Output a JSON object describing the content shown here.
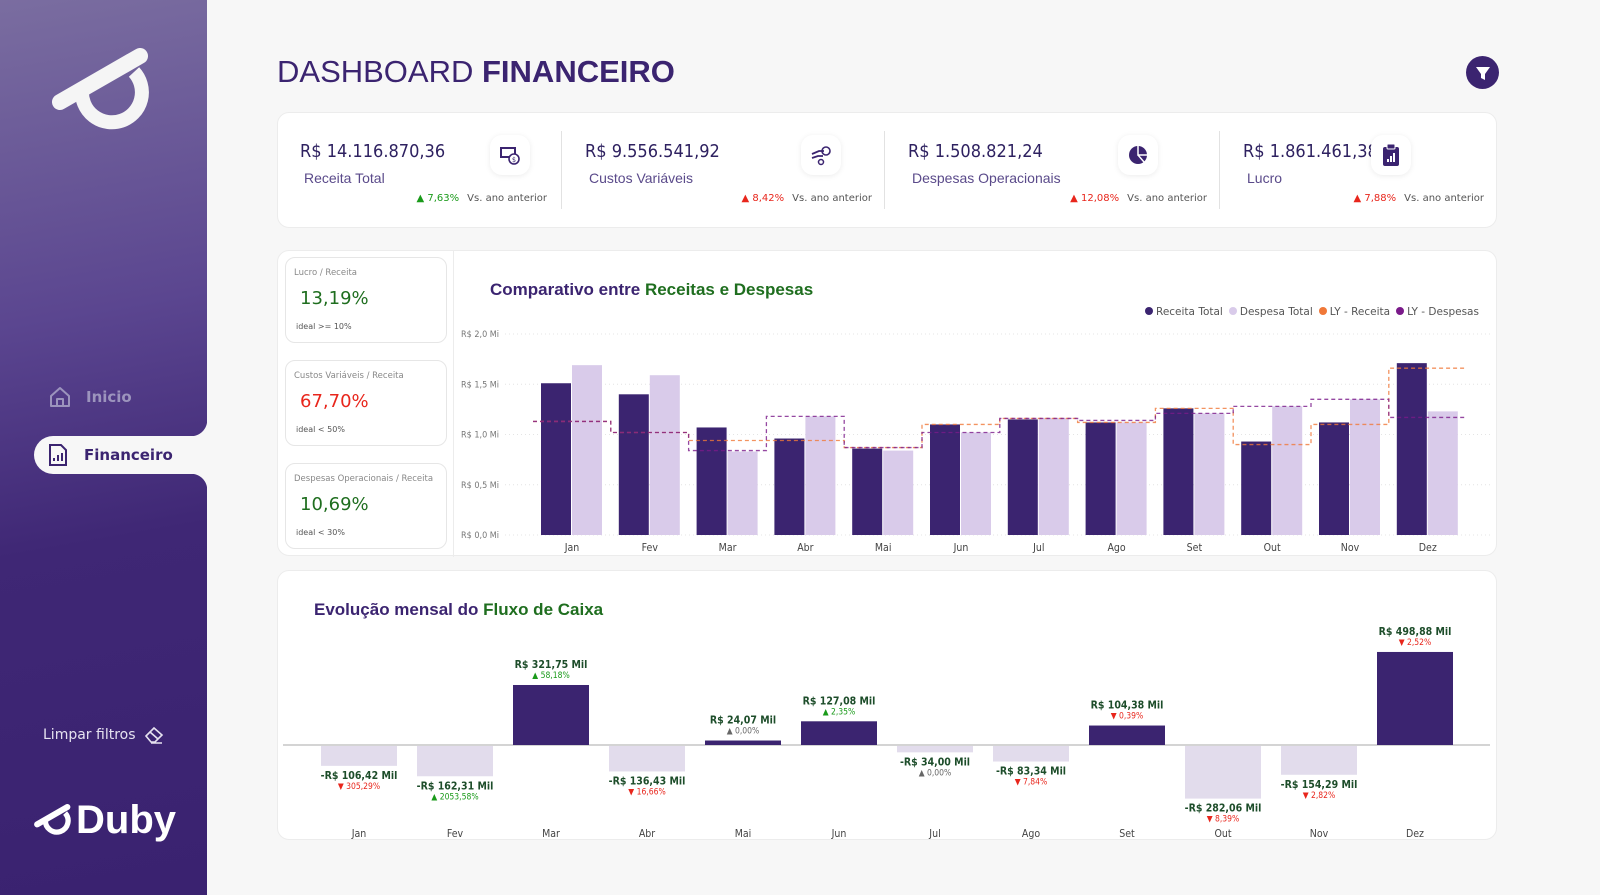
{
  "sidebar": {
    "nav": [
      {
        "label": "Inicio",
        "icon": "home-icon"
      },
      {
        "label": "Financeiro",
        "icon": "report-icon",
        "active": true
      }
    ],
    "clear_filters": "Limpar filtros",
    "brand": "Duby"
  },
  "header": {
    "title_light": "DASHBOARD",
    "title_bold": "FINANCEIRO"
  },
  "kpis": [
    {
      "value": "R$ 14.116.870,36",
      "label": "Receita Total",
      "delta": "7,63%",
      "delta_dir": "up",
      "delta_color": "#1a9a1a",
      "compare": "Vs. ano anterior",
      "icon": "money-icon"
    },
    {
      "value": "R$ 9.556.541,92",
      "label": "Custos Variáveis",
      "delta": "8,42%",
      "delta_dir": "up",
      "delta_color": "#e8261c",
      "compare": "Vs. ano anterior",
      "icon": "hand-coin-icon"
    },
    {
      "value": "R$ 1.508.821,24",
      "label": "Despesas Operacionais",
      "delta": "12,08%",
      "delta_dir": "up",
      "delta_color": "#e8261c",
      "compare": "Vs. ano anterior",
      "icon": "pie-chart-icon"
    },
    {
      "value": "R$ 1.861.461,38",
      "label": "Lucro",
      "delta": "7,88%",
      "delta_dir": "up",
      "delta_color": "#e8261c",
      "compare": "Vs. ano anterior",
      "icon": "clipboard-chart-icon"
    }
  ],
  "ratios": [
    {
      "title": "Lucro / Receita",
      "value": "13,19%",
      "ideal": "ideal >= 10%",
      "color": "#1f6e1f"
    },
    {
      "title": "Custos Variáveis / Receita",
      "value": "67,70%",
      "ideal": "ideal < 50%",
      "color": "#e8261c"
    },
    {
      "title": "Despesas Operacionais / Receita",
      "value": "10,69%",
      "ideal": "ideal < 30%",
      "color": "#1f6e1f"
    }
  ],
  "chart_data": [
    {
      "type": "bar",
      "title_a": "Comparativo entre",
      "title_b": "Receitas e Despesas",
      "categories": [
        "Jan",
        "Fev",
        "Mar",
        "Abr",
        "Mai",
        "Jun",
        "Jul",
        "Ago",
        "Set",
        "Out",
        "Nov",
        "Dez"
      ],
      "yticks": [
        "R$ 0,0 Mi",
        "R$ 0,5 Mi",
        "R$ 1,0 Mi",
        "R$ 1,5 Mi",
        "R$ 2,0 Mi"
      ],
      "ylim": [
        0,
        2.0
      ],
      "unit": "Mi",
      "grid": true,
      "legend_position": "top-right",
      "series": [
        {
          "name": "Receita Total",
          "type": "bar",
          "color": "#3b2470",
          "values": [
            1.51,
            1.4,
            1.07,
            0.96,
            0.86,
            1.1,
            1.15,
            1.12,
            1.26,
            0.93,
            1.12,
            1.71
          ]
        },
        {
          "name": "Despesa Total",
          "type": "bar",
          "color": "#d9cbea",
          "values": [
            1.69,
            1.59,
            0.83,
            1.18,
            0.84,
            1.02,
            1.16,
            1.12,
            1.21,
            1.28,
            1.35,
            1.23
          ]
        },
        {
          "name": "LY - Receita",
          "type": "step-line",
          "color": "#f07838",
          "values": [
            1.13,
            1.02,
            0.94,
            0.94,
            0.87,
            1.1,
            1.16,
            1.12,
            1.26,
            0.9,
            1.1,
            1.66
          ]
        },
        {
          "name": "LY - Despesas",
          "type": "step-line",
          "color": "#7a1a8a",
          "values": [
            1.13,
            1.02,
            0.84,
            1.18,
            0.87,
            1.02,
            1.16,
            1.14,
            1.21,
            1.28,
            1.35,
            1.17
          ]
        }
      ]
    },
    {
      "type": "bar",
      "title_a": "Evolução mensal do",
      "title_b": "Fluxo de Caixa",
      "unit": "Mil",
      "categories": [
        "Jan",
        "Fev",
        "Mar",
        "Abr",
        "Mai",
        "Jun",
        "Jul",
        "Ago",
        "Set",
        "Out",
        "Nov",
        "Dez"
      ],
      "values": [
        -106.42,
        -162.31,
        321.75,
        -136.43,
        24.07,
        127.08,
        -34.0,
        -83.34,
        104.38,
        -282.06,
        -154.29,
        498.88
      ],
      "labels": [
        "-R$ 106,42 Mil",
        "-R$ 162,31 Mil",
        "R$ 321,75 Mil",
        "-R$ 136,43 Mil",
        "R$ 24,07 Mil",
        "R$ 127,08 Mil",
        "-R$ 34,00 Mil",
        "-R$ 83,34 Mil",
        "R$ 104,38 Mil",
        "-R$ 282,06 Mil",
        "-R$ 154,29 Mil",
        "R$ 498,88 Mil"
      ],
      "changes": [
        "305,29%",
        "2053,58%",
        "58,18%",
        "16,66%",
        "0,00%",
        "2,35%",
        "0,00%",
        "7,84%",
        "0,39%",
        "8,39%",
        "2,82%",
        "2,52%"
      ],
      "change_dirs": [
        "down",
        "up",
        "up",
        "down",
        "flat",
        "up",
        "flat",
        "down",
        "down",
        "down",
        "down",
        "down"
      ],
      "colors": {
        "positive": "#3b2470",
        "negative": "#e2dcec",
        "up": "#1a9a1a",
        "down": "#e8261c",
        "flat": "#666666",
        "label": "#1d4d2a"
      }
    }
  ]
}
